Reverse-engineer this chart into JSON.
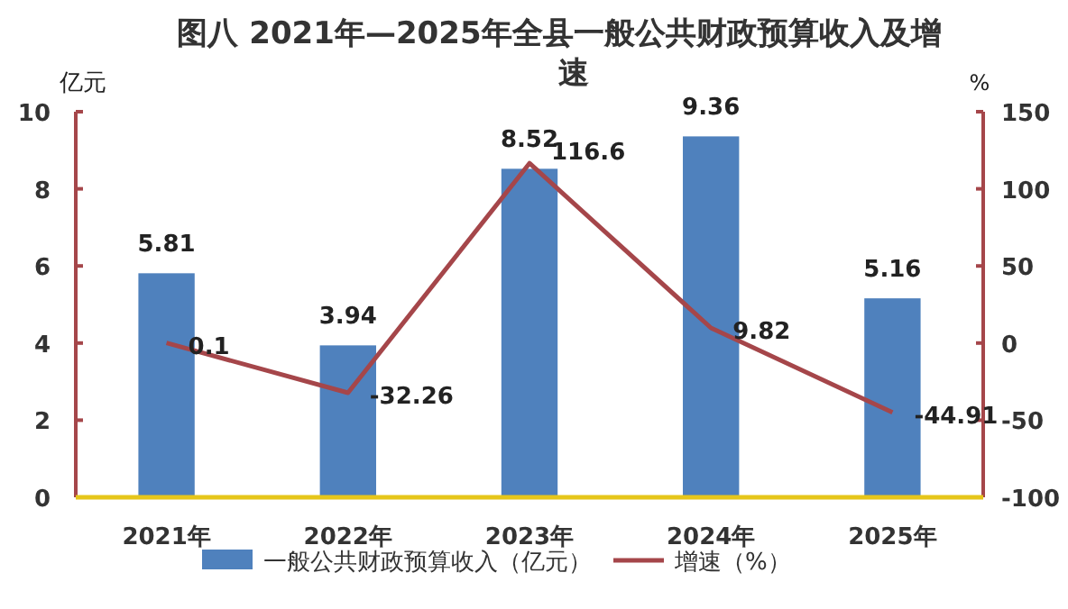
{
  "chart_data": {
    "type": "bar",
    "title": "图八  2021年—2025年全县一般公共财政预算收入及增速",
    "ylabel": "亿元",
    "y2label": "%",
    "categories": [
      "2021年",
      "2022年",
      "2023年",
      "2024年",
      "2025年"
    ],
    "series": [
      {
        "name": "一般公共财政预算收入（亿元）",
        "color": "#4f81bd",
        "values": [
          5.81,
          3.94,
          8.52,
          9.36,
          5.16
        ]
      },
      {
        "name": "增速（%）",
        "type": "line",
        "axis": "y2",
        "color": "#a5464a",
        "values": [
          0.1,
          -32.26,
          116.6,
          9.82,
          -44.91
        ]
      }
    ],
    "ylim": [
      0,
      10
    ],
    "yticks": [
      0,
      2,
      4,
      6,
      8,
      10
    ],
    "y2lim": [
      -100,
      150
    ],
    "y2ticks": [
      -100,
      -50,
      0,
      50,
      100,
      150
    ],
    "data_labels": true,
    "legend": "bottom",
    "grid": false,
    "marker": "none"
  }
}
